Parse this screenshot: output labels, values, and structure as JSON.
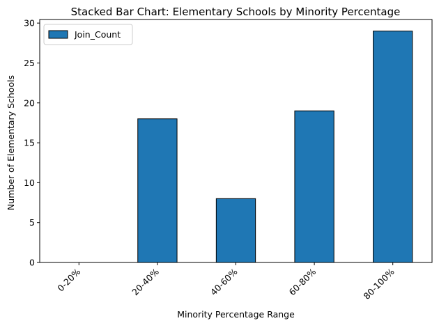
{
  "chart_data": {
    "type": "bar",
    "title": "Stacked Bar Chart: Elementary Schools by Minority Percentage",
    "xlabel": "Minority Percentage Range",
    "ylabel": "Number of Elementary Schools",
    "categories": [
      "0-20%",
      "20-40%",
      "40-60%",
      "60-80%",
      "80-100%"
    ],
    "series": [
      {
        "name": "Join_Count",
        "values": [
          0,
          18,
          8,
          19,
          29
        ],
        "color": "#1f77b4"
      }
    ],
    "ylim": [
      0,
      30.45
    ],
    "yticks": [
      0,
      5,
      10,
      15,
      20,
      25,
      30
    ],
    "ytick_labels": [
      "0",
      "5",
      "10",
      "15",
      "20",
      "25",
      "30"
    ],
    "legend_position": "upper-left",
    "grid": false,
    "stacked": true
  }
}
